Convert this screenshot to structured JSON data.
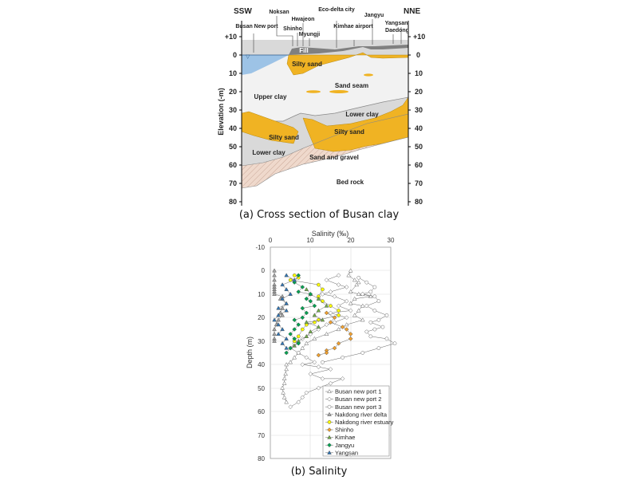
{
  "figure_a": {
    "caption": "(a) Cross section of Busan clay",
    "direction_left": "SSW",
    "direction_right": "NNE",
    "y_axis_label": "Elevation (-m)",
    "y_ticks": [
      "+10",
      "0",
      "10",
      "20",
      "30",
      "40",
      "50",
      "60",
      "70",
      "80"
    ],
    "locations": [
      "Busan New port",
      "Noksan",
      "Shinho",
      "Hwajeon",
      "Myungji",
      "Eco-delta city",
      "Kimhae airport",
      "Jangyu",
      "Daedong",
      "Yangsan"
    ],
    "layers": [
      "Fill",
      "Silty sand",
      "Sand seam",
      "Upper clay",
      "Lower clay",
      "Silty sand",
      "Silty sand",
      "Lower clay",
      "Sand and gravel",
      "Bed rock"
    ],
    "colors": {
      "water": "#9dc3e6",
      "sand": "#f0b323",
      "clay_upper": "#f2f2f2",
      "clay_lower": "#d9d9d9",
      "fill": "#7f7f7f",
      "gravel": "#e8d2c4"
    }
  },
  "figure_b": {
    "caption": "(b) Salinity",
    "legend": [
      "Busan new port 1",
      "Busan new port 2",
      "Busan new port 3",
      "Nakdong river delta",
      "Nakdong river estuary",
      "Shinho",
      "Kimhae",
      "Jangyu",
      "Yangsan"
    ]
  },
  "chart_data": {
    "type": "scatter",
    "title": "",
    "xlabel": "Salinity (‰)",
    "ylabel": "Depth (m)",
    "xlim": [
      0,
      30
    ],
    "ylim": [
      -10,
      80
    ],
    "x_ticks": [
      0,
      10,
      20,
      30
    ],
    "y_ticks": [
      -10,
      0,
      10,
      20,
      30,
      40,
      50,
      60,
      70,
      80
    ],
    "y_inverted": true,
    "grid": true,
    "legend_position": "lower right",
    "series": [
      {
        "name": "Busan new port 1",
        "marker": "triangle-open",
        "color": "#808080",
        "points": [
          [
            20,
            0
          ],
          [
            19.5,
            2
          ],
          [
            21,
            4
          ],
          [
            22,
            5
          ],
          [
            21.5,
            6
          ],
          [
            20,
            9
          ],
          [
            22,
            10
          ],
          [
            23,
            10
          ],
          [
            25,
            11
          ],
          [
            21,
            12
          ],
          [
            20,
            14
          ],
          [
            23,
            15
          ],
          [
            22,
            17
          ],
          [
            21,
            19
          ],
          [
            23,
            21
          ],
          [
            19,
            23
          ],
          [
            17,
            25
          ],
          [
            14,
            27
          ],
          [
            11,
            29
          ],
          [
            9,
            31
          ],
          [
            8,
            33
          ],
          [
            7,
            35
          ],
          [
            6,
            37
          ],
          [
            5,
            39
          ],
          [
            4,
            40
          ],
          [
            4,
            42
          ],
          [
            3.8,
            44
          ],
          [
            3.5,
            46
          ],
          [
            3.5,
            48
          ],
          [
            3,
            50
          ],
          [
            3.2,
            52
          ],
          [
            3.5,
            54
          ],
          [
            4,
            56
          ]
        ]
      },
      {
        "name": "Busan new port 2",
        "marker": "diamond-open",
        "color": "#808080",
        "points": [
          [
            17,
            2
          ],
          [
            14,
            4
          ],
          [
            17,
            6
          ],
          [
            19,
            7
          ],
          [
            15,
            9
          ],
          [
            13,
            10
          ],
          [
            16,
            11
          ],
          [
            19,
            13
          ],
          [
            17,
            15
          ],
          [
            20,
            17
          ],
          [
            15,
            18
          ],
          [
            19,
            20
          ],
          [
            16,
            22
          ],
          [
            14,
            23
          ],
          [
            12,
            25
          ],
          [
            10,
            27
          ],
          [
            8,
            29
          ],
          [
            6,
            31
          ],
          [
            5,
            33
          ],
          [
            7,
            35
          ],
          [
            9,
            37
          ],
          [
            11,
            39
          ],
          [
            8,
            40
          ],
          [
            12,
            41
          ],
          [
            15,
            42
          ],
          [
            10,
            44
          ],
          [
            13,
            46
          ],
          [
            18,
            46
          ],
          [
            15,
            48
          ],
          [
            12,
            50
          ],
          [
            9,
            52
          ],
          [
            8,
            54
          ],
          [
            7,
            56
          ],
          [
            5,
            58
          ]
        ]
      },
      {
        "name": "Busan new port 3",
        "marker": "circle-open",
        "color": "#808080",
        "points": [
          [
            22,
            3
          ],
          [
            24,
            5
          ],
          [
            26,
            7
          ],
          [
            25,
            9
          ],
          [
            23,
            10
          ],
          [
            26,
            11
          ],
          [
            27,
            13
          ],
          [
            24,
            15
          ],
          [
            26,
            17
          ],
          [
            29,
            19
          ],
          [
            27,
            21
          ],
          [
            25,
            22
          ],
          [
            28,
            24
          ],
          [
            26,
            25
          ],
          [
            24,
            26
          ],
          [
            25,
            28
          ],
          [
            29,
            29
          ],
          [
            31,
            31
          ],
          [
            27,
            33
          ],
          [
            23,
            35
          ],
          [
            18,
            37
          ],
          [
            13,
            39
          ]
        ]
      },
      {
        "name": "Nakdong river delta",
        "marker": "triangle",
        "color": "#a6a6a6",
        "points": [
          [
            1,
            0
          ],
          [
            1,
            2
          ],
          [
            1,
            4
          ],
          [
            1,
            6
          ],
          [
            1,
            7
          ],
          [
            1,
            8
          ],
          [
            1,
            9
          ],
          [
            1,
            10
          ],
          [
            3,
            11
          ],
          [
            2.5,
            12
          ],
          [
            4,
            14
          ],
          [
            3,
            16
          ],
          [
            2.5,
            18
          ],
          [
            3,
            19
          ],
          [
            2,
            21
          ],
          [
            1.5,
            23
          ],
          [
            1,
            25
          ],
          [
            1,
            27
          ],
          [
            1,
            29
          ],
          [
            1,
            30
          ]
        ]
      },
      {
        "name": "Nakdong river estuary",
        "marker": "circle",
        "color": "#ffff00",
        "points": [
          [
            6,
            2
          ],
          [
            7,
            3
          ],
          [
            5,
            4
          ],
          [
            12,
            6
          ],
          [
            13,
            8
          ],
          [
            12,
            11
          ],
          [
            13,
            13
          ],
          [
            15,
            15
          ],
          [
            17,
            17
          ],
          [
            17,
            19
          ],
          [
            12,
            21
          ],
          [
            11,
            22
          ],
          [
            9,
            23
          ],
          [
            8,
            25
          ],
          [
            7,
            28
          ],
          [
            6,
            30
          ]
        ]
      },
      {
        "name": "Shinho",
        "marker": "diamond",
        "color": "#f0a030",
        "points": [
          [
            14,
            18
          ],
          [
            16,
            20
          ],
          [
            15,
            22
          ],
          [
            18,
            24
          ],
          [
            19,
            25
          ],
          [
            20,
            27
          ],
          [
            20,
            29
          ],
          [
            17,
            31
          ],
          [
            16,
            33
          ],
          [
            14,
            34
          ],
          [
            14,
            35
          ],
          [
            12,
            36
          ]
        ]
      },
      {
        "name": "Kimhae",
        "marker": "triangle",
        "color": "#70ad47",
        "points": [
          [
            9,
            8
          ],
          [
            10,
            10
          ],
          [
            12,
            12
          ],
          [
            14,
            15
          ],
          [
            12,
            17
          ],
          [
            11,
            19
          ],
          [
            13,
            21
          ],
          [
            9,
            22
          ],
          [
            12,
            24
          ],
          [
            10,
            26
          ],
          [
            9,
            28
          ],
          [
            7,
            30
          ],
          [
            6,
            32
          ]
        ]
      },
      {
        "name": "Jangyu",
        "marker": "diamond",
        "color": "#00a050",
        "points": [
          [
            7,
            2
          ],
          [
            6,
            5
          ],
          [
            8,
            7
          ],
          [
            7,
            9
          ],
          [
            10,
            10
          ],
          [
            9,
            12
          ],
          [
            10,
            13
          ],
          [
            11,
            15
          ],
          [
            8,
            16
          ],
          [
            9,
            18
          ],
          [
            8,
            20
          ],
          [
            6,
            21
          ],
          [
            7,
            23
          ],
          [
            6,
            25
          ],
          [
            5,
            27
          ],
          [
            6,
            29
          ],
          [
            7,
            31
          ],
          [
            5,
            33
          ],
          [
            4,
            35
          ]
        ]
      },
      {
        "name": "Yangsan",
        "marker": "triangle",
        "color": "#2e75b6",
        "points": [
          [
            4,
            2
          ],
          [
            6,
            4
          ],
          [
            3,
            6
          ],
          [
            4,
            8
          ],
          [
            5,
            10
          ],
          [
            3,
            12
          ],
          [
            4,
            14
          ],
          [
            2,
            16
          ],
          [
            4,
            17
          ],
          [
            2,
            19
          ],
          [
            1,
            21
          ],
          [
            2,
            23
          ],
          [
            3,
            25
          ],
          [
            2,
            27
          ],
          [
            4,
            29
          ],
          [
            3,
            31
          ],
          [
            4,
            33
          ]
        ]
      }
    ]
  }
}
